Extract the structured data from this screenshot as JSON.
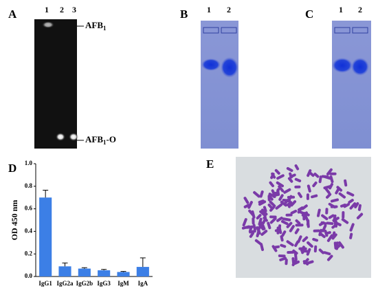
{
  "panels": {
    "A": {
      "label": "A",
      "lanes": [
        "1",
        "2",
        "3"
      ],
      "annotations": [
        {
          "main": "AFB",
          "sub": "1",
          "suffix": ""
        },
        {
          "main": "AFB",
          "sub": "1",
          "suffix": "-O"
        }
      ]
    },
    "B": {
      "label": "B",
      "lanes": [
        "1",
        "2"
      ]
    },
    "C": {
      "label": "C",
      "lanes": [
        "1",
        "2"
      ]
    },
    "D": {
      "label": "D"
    },
    "E": {
      "label": "E"
    }
  },
  "chart_data": {
    "type": "bar",
    "ylabel": "OD 450 nm",
    "categories": [
      "IgG1",
      "IgG2a",
      "IgG2b",
      "IgG3",
      "IgM",
      "IgA"
    ],
    "values": [
      0.7,
      0.09,
      0.07,
      0.055,
      0.04,
      0.085
    ],
    "errors": [
      0.065,
      0.03,
      0.008,
      0.008,
      0.005,
      0.08
    ],
    "color": "#3c7fe6",
    "ylim": [
      0,
      1.0
    ],
    "yticks": [
      {
        "value": 0,
        "label": "0.0"
      },
      {
        "value": 0.2,
        "label": "0.2"
      },
      {
        "value": 0.4,
        "label": "0.4"
      },
      {
        "value": 0.6,
        "label": "0.6"
      },
      {
        "value": 0.8,
        "label": "0.8"
      },
      {
        "value": 1.0,
        "label": "1.0"
      }
    ]
  }
}
